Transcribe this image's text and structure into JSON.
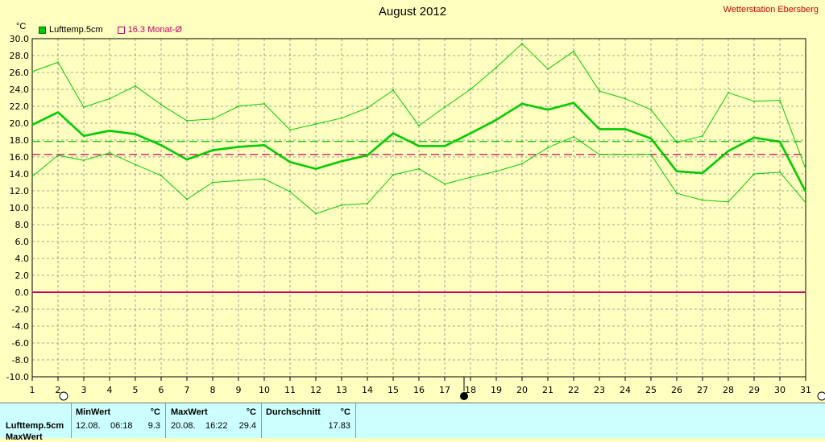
{
  "header": {
    "title": "August 2012",
    "station": "Wetterstation Ebersberg",
    "unit": "°C"
  },
  "legend": [
    {
      "label": "Lufttemp.5cm",
      "color": "#00cc00",
      "filled": true
    },
    {
      "label": "16.3 Monat-Ø",
      "color": "#cc0066",
      "filled": false
    }
  ],
  "chart_data": {
    "type": "line",
    "title": "August 2012",
    "ylabel": "°C",
    "ylim": [
      -10,
      30
    ],
    "yticks": [
      "30.0",
      "28.0",
      "26.0",
      "24.0",
      "22.0",
      "20.0",
      "18.0",
      "16.0",
      "14.0",
      "12.0",
      "10.0",
      "8.0",
      "6.0",
      "4.0",
      "2.0",
      "0.0",
      "-2.0",
      "-4.0",
      "-6.0",
      "-8.0",
      "-10.0"
    ],
    "x": [
      1,
      2,
      3,
      4,
      5,
      6,
      7,
      8,
      9,
      10,
      11,
      12,
      13,
      14,
      15,
      16,
      17,
      18,
      19,
      20,
      21,
      22,
      23,
      24,
      25,
      26,
      27,
      28,
      29,
      30,
      31
    ],
    "grid": true,
    "series": [
      {
        "name": "Lufttemp.5cm",
        "role": "mean",
        "color": "#00cc00",
        "values": [
          19.8,
          21.3,
          18.5,
          19.1,
          18.7,
          17.4,
          15.7,
          16.8,
          17.2,
          17.4,
          15.4,
          14.6,
          15.5,
          16.2,
          18.8,
          17.3,
          17.3,
          18.8,
          20.4,
          22.3,
          21.6,
          22.4,
          19.3,
          19.3,
          18.2,
          14.3,
          14.1,
          16.7,
          18.3,
          17.8,
          11.9
        ]
      },
      {
        "role": "max",
        "color": "#00cc00",
        "values": [
          26.1,
          27.2,
          21.9,
          22.9,
          24.4,
          22.2,
          20.3,
          20.5,
          22.0,
          22.3,
          19.2,
          19.9,
          20.6,
          21.8,
          23.9,
          19.7,
          21.9,
          24.0,
          26.6,
          29.4,
          26.4,
          28.5,
          23.8,
          22.9,
          21.6,
          17.7,
          18.5,
          23.6,
          22.6,
          22.7,
          14.6
        ]
      },
      {
        "role": "min",
        "color": "#00cc00",
        "values": [
          13.7,
          16.2,
          15.6,
          16.5,
          15.1,
          13.8,
          11.0,
          13.0,
          13.2,
          13.4,
          11.9,
          9.3,
          10.3,
          10.5,
          13.9,
          14.6,
          12.8,
          13.6,
          14.3,
          15.2,
          17.1,
          18.4,
          16.3,
          16.3,
          16.3,
          11.7,
          10.9,
          10.7,
          14.0,
          14.2,
          10.6
        ]
      }
    ],
    "reference_lines": [
      {
        "label": "16.3 Monat-Ø",
        "value": 16.3,
        "color": "#cc0066",
        "style": "dashed"
      },
      {
        "value": 17.83,
        "color": "#00cc00",
        "style": "dashed"
      },
      {
        "value": 0.0,
        "color": "#cc0066",
        "style": "solid"
      }
    ]
  },
  "stats": {
    "row_label": "Lufttemp.5cm",
    "row_label_2": "MaxWert",
    "min": {
      "header": "MinWert",
      "unit": "°C",
      "date": "12.08.",
      "time": "06:18",
      "value": "9.3"
    },
    "max": {
      "header": "MaxWert",
      "unit": "°C",
      "date": "20.08.",
      "time": "16:22",
      "value": "29.4"
    },
    "avg": {
      "header": "Durchschnitt",
      "unit": "°C",
      "value": "17.83"
    }
  }
}
